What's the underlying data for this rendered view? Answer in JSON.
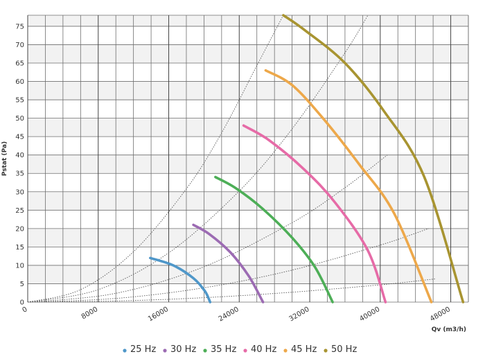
{
  "chart_data": {
    "type": "line",
    "xlabel": "Qv (m3/h)",
    "ylabel": "Pstat (Pa)",
    "xlim": [
      0,
      50000
    ],
    "ylim": [
      0,
      78
    ],
    "x_ticks": [
      0,
      8000,
      16000,
      24000,
      32000,
      40000,
      48000
    ],
    "x_tick_labels": [
      "0",
      "8000",
      "16000",
      "24000",
      "32000",
      "40000",
      "48000"
    ],
    "y_ticks": [
      0,
      5,
      10,
      15,
      20,
      25,
      30,
      35,
      40,
      45,
      50,
      55,
      60,
      65,
      70,
      75
    ],
    "y_tick_labels": [
      "0",
      "5",
      "10",
      "15",
      "20",
      "25",
      "30",
      "35",
      "40",
      "45",
      "50",
      "55",
      "60",
      "65",
      "70",
      "75"
    ],
    "grid": true,
    "legend_position": "bottom",
    "series": [
      {
        "name": "25 Hz",
        "color": "#4f97c9",
        "x": [
          13900,
          16500,
          18800,
          20100,
          20700
        ],
        "y": [
          12.0,
          10.0,
          6.5,
          3.0,
          0.0
        ]
      },
      {
        "name": "30 Hz",
        "color": "#9c6bb3",
        "x": [
          18800,
          20600,
          23000,
          25100,
          26700
        ],
        "y": [
          21.0,
          18.5,
          13.5,
          7.0,
          0.0
        ]
      },
      {
        "name": "35 Hz",
        "color": "#4dae57",
        "x": [
          21300,
          23600,
          26600,
          30000,
          32600,
          34600
        ],
        "y": [
          34.0,
          31.0,
          25.5,
          17.5,
          9.5,
          0.0
        ]
      },
      {
        "name": "40 Hz",
        "color": "#e66ba7",
        "x": [
          24500,
          27400,
          31400,
          34900,
          38600,
          40600
        ],
        "y": [
          48.0,
          44.0,
          36.0,
          27.0,
          14.0,
          0.0
        ]
      },
      {
        "name": "45 Hz",
        "color": "#eda84a",
        "x": [
          27000,
          30000,
          33500,
          37600,
          41600,
          45800
        ],
        "y": [
          63.0,
          59.0,
          50.0,
          37.5,
          24.0,
          0.0
        ]
      },
      {
        "name": "50 Hz",
        "color": "#a89431",
        "x": [
          29000,
          31400,
          36000,
          40400,
          45000,
          49400
        ],
        "y": [
          78.0,
          74.0,
          65.0,
          52.0,
          34.0,
          0.0
        ]
      }
    ],
    "system_curves": [
      {
        "x": [
          0,
          6000,
          12000,
          18000,
          22000,
          26000,
          29000
        ],
        "y": [
          0,
          3.4,
          13.7,
          30.8,
          46.0,
          64.3,
          78.0
        ]
      },
      {
        "x": [
          0,
          8000,
          16000,
          24000,
          30000,
          36000,
          38600
        ],
        "y": [
          0,
          3.4,
          13.4,
          30.2,
          47.1,
          67.8,
          78.0
        ]
      },
      {
        "x": [
          0,
          10000,
          20000,
          30000,
          36000,
          40800
        ],
        "y": [
          0,
          2.4,
          9.6,
          21.6,
          31.1,
          40.0
        ]
      },
      {
        "x": [
          0,
          10000,
          20000,
          30000,
          40000,
          45500
        ],
        "y": [
          0,
          1.0,
          3.9,
          8.7,
          15.5,
          20.0
        ]
      },
      {
        "x": [
          0,
          10000,
          20000,
          30000,
          40000,
          46200
        ],
        "y": [
          0,
          0.3,
          1.2,
          2.7,
          4.7,
          6.3
        ]
      }
    ]
  }
}
